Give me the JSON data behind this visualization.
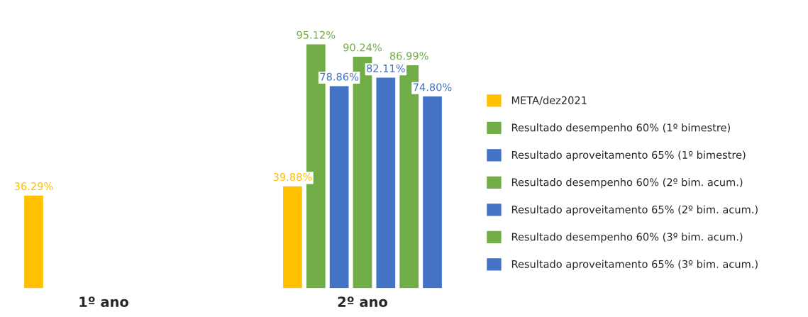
{
  "chart_data": {
    "type": "bar",
    "categories": [
      "1º ano",
      "2º ano"
    ],
    "legend": "right",
    "grid": false,
    "series": [
      {
        "name": "META/dez2021",
        "color": "#ffc000",
        "values": [
          36.29,
          39.88
        ],
        "value_labels": [
          "36.29%",
          "39.88%"
        ]
      },
      {
        "name": "Resultado desempenho 60% (1º bimestre)",
        "color": "#70ad47",
        "values": [
          null,
          95.12
        ],
        "value_labels": [
          null,
          "95.12%"
        ]
      },
      {
        "name": "Resultado aproveitamento 65% (1º bimestre)",
        "color": "#4472c4",
        "values": [
          null,
          78.86
        ],
        "value_labels": [
          null,
          "78.86%"
        ]
      },
      {
        "name": "Resultado desempenho 60% (2º bim. acum.)",
        "color": "#70ad47",
        "values": [
          null,
          90.24
        ],
        "value_labels": [
          null,
          "90.24%"
        ]
      },
      {
        "name": "Resultado aproveitamento 65% (2º bim. acum.)",
        "color": "#4472c4",
        "values": [
          null,
          82.11
        ],
        "value_labels": [
          null,
          "82.11%"
        ]
      },
      {
        "name": "Resultado desempenho 60% (3º bim. acum.)",
        "color": "#70ad47",
        "values": [
          null,
          86.99
        ],
        "value_labels": [
          null,
          "86.99%"
        ]
      },
      {
        "name": "Resultado aproveitamento 65% (3º bim. acum.)",
        "color": "#4472c4",
        "values": [
          null,
          74.8
        ],
        "value_labels": [
          null,
          "74.80%"
        ]
      }
    ]
  }
}
